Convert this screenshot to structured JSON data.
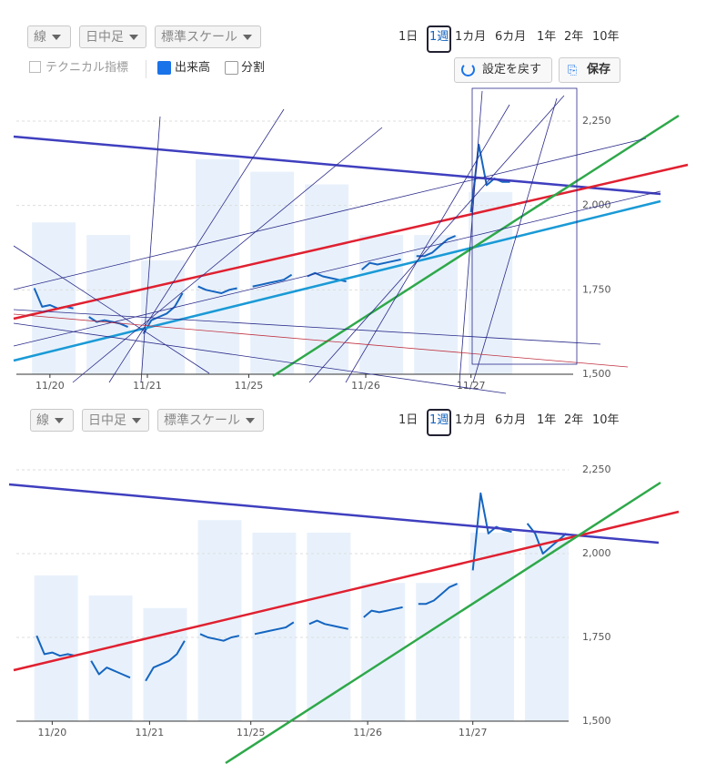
{
  "panels": [
    {
      "toolbar": {
        "dropdowns": [
          "線",
          "日中足",
          "標準スケール"
        ],
        "periods": [
          "1日",
          "1週",
          "1カ月",
          "6カ月",
          "1年",
          "2年",
          "10年"
        ],
        "selected": 1
      },
      "options": {
        "technical": "テクニカル指標",
        "volume": "出来高",
        "split": "分割",
        "reset": "設定を戻す",
        "save": "保存"
      }
    },
    {
      "toolbar": {
        "dropdowns": [
          "線",
          "日中足",
          "標準スケール"
        ],
        "periods": [
          "1日",
          "1週",
          "1カ月",
          "6カ月",
          "1年",
          "2年",
          "10年"
        ],
        "selected": 1
      }
    }
  ],
  "chart_data": [
    {
      "type": "line",
      "x": [
        0,
        1,
        2,
        3,
        4,
        5,
        6,
        7,
        8,
        9,
        10,
        11,
        12,
        13,
        14,
        15,
        16,
        17,
        18,
        19,
        20,
        21,
        22,
        23,
        24,
        25,
        26,
        27,
        28,
        29,
        30,
        31,
        32,
        33,
        34,
        35,
        36,
        37,
        38,
        39,
        40,
        41,
        42,
        43,
        44,
        45,
        46,
        47,
        48,
        49,
        50,
        51,
        52,
        53,
        54,
        55,
        56,
        57,
        58,
        59,
        60,
        61
      ],
      "series": [
        {
          "color": "#1565c0",
          "values": [
            1755,
            1700,
            1705,
            1695,
            1700,
            1695,
            null,
            1670,
            1655,
            1660,
            1655,
            1650,
            1640,
            null,
            1620,
            1660,
            1670,
            1680,
            1700,
            1740,
            null,
            1760,
            1750,
            1745,
            1740,
            1750,
            1755,
            null,
            1760,
            1765,
            1770,
            1775,
            1780,
            1795,
            null,
            1790,
            1800,
            1790,
            1785,
            1780,
            1775,
            null,
            1810,
            1830,
            1825,
            1830,
            1835,
            1840,
            null,
            1850,
            1850,
            1860,
            1880,
            1900,
            1910,
            null,
            1980,
            2180,
            2060,
            2080,
            2070,
            2070
          ]
        }
      ],
      "xlim": [
        -2.3,
        69.1
      ],
      "xticks": [
        {
          "value": 2,
          "label": "11/20"
        },
        {
          "value": 14.5,
          "label": "11/21"
        },
        {
          "value": 27.5,
          "label": "11/25"
        },
        {
          "value": 42.5,
          "label": "11/26"
        },
        {
          "value": 56,
          "label": "11/27"
        }
      ],
      "ylim": [
        1500,
        2250
      ],
      "yticks": [
        {
          "value": 1500,
          "label": "1,500"
        },
        {
          "value": 1750,
          "label": "1,750"
        },
        {
          "value": 2000,
          "label": "2,000"
        },
        {
          "value": 2250,
          "label": "2,250"
        }
      ],
      "grid": true
    },
    {
      "type": "line",
      "x": [
        0,
        1,
        2,
        3,
        4,
        5,
        6,
        7,
        8,
        9,
        10,
        11,
        12,
        13,
        14,
        15,
        16,
        17,
        18,
        19,
        20,
        21,
        22,
        23,
        24,
        25,
        26,
        27,
        28,
        29,
        30,
        31,
        32,
        33,
        34,
        35,
        36,
        37,
        38,
        39,
        40,
        41,
        42,
        43,
        44,
        45,
        46,
        47,
        48,
        49,
        50,
        51,
        52,
        53,
        54,
        55,
        56,
        57,
        58,
        59,
        60,
        61,
        62,
        63,
        64,
        65,
        66,
        67,
        68
      ],
      "series": [
        {
          "color": "#1565c0",
          "values": [
            1755,
            1700,
            1705,
            1695,
            1700,
            1695,
            null,
            1680,
            1640,
            1660,
            1650,
            1640,
            1630,
            null,
            1620,
            1660,
            1670,
            1680,
            1700,
            1740,
            null,
            1760,
            1750,
            1745,
            1740,
            1750,
            1755,
            null,
            1760,
            1765,
            1770,
            1775,
            1780,
            1795,
            null,
            1790,
            1800,
            1790,
            1785,
            1780,
            1775,
            null,
            1810,
            1830,
            1825,
            1830,
            1835,
            1840,
            null,
            1850,
            1850,
            1860,
            1880,
            1900,
            1910,
            null,
            1950,
            2180,
            2060,
            2080,
            2070,
            2065,
            null,
            2090,
            2060,
            2000,
            2020,
            2040,
            2060
          ]
        }
      ],
      "xlim": [
        -2.6,
        68.3
      ],
      "xticks": [
        {
          "value": 2,
          "label": "11/20"
        },
        {
          "value": 14.5,
          "label": "11/21"
        },
        {
          "value": 27.5,
          "label": "11/25"
        },
        {
          "value": 42.5,
          "label": "11/26"
        },
        {
          "value": 56,
          "label": "11/27"
        }
      ],
      "ylim": [
        1500,
        2250
      ],
      "yticks": [
        {
          "value": 1500,
          "label": "1,500"
        },
        {
          "value": 1750,
          "label": "1,750"
        },
        {
          "value": 2000,
          "label": "2,000"
        },
        {
          "value": 2250,
          "label": "2,250"
        }
      ],
      "grid": true
    }
  ]
}
